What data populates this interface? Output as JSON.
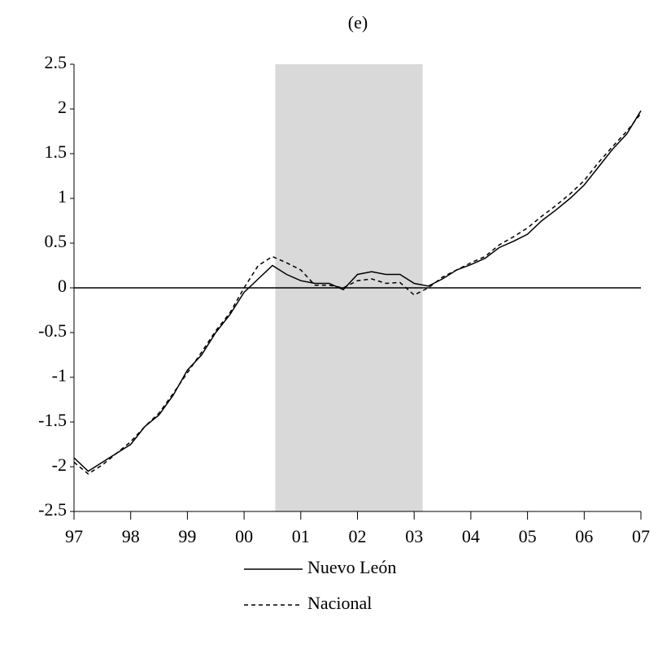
{
  "chart_data": {
    "type": "line",
    "title": "(e)",
    "x": [
      1997,
      1997.25,
      1997.5,
      1997.75,
      1998,
      1998.25,
      1998.5,
      1998.75,
      1999,
      1999.25,
      1999.5,
      1999.75,
      2000,
      2000.25,
      2000.5,
      2000.75,
      2001,
      2001.25,
      2001.5,
      2001.75,
      2002,
      2002.25,
      2002.5,
      2002.75,
      2003,
      2003.25,
      2003.5,
      2003.75,
      2004,
      2004.25,
      2004.5,
      2004.75,
      2005,
      2005.25,
      2005.5,
      2005.75,
      2006,
      2006.25,
      2006.5,
      2006.75,
      2007
    ],
    "series": [
      {
        "name": "Nuevo León",
        "color": "#000000",
        "dash": "none",
        "values": [
          -1.9,
          -2.05,
          -1.95,
          -1.85,
          -1.75,
          -1.55,
          -1.42,
          -1.2,
          -0.92,
          -0.75,
          -0.5,
          -0.3,
          -0.05,
          0.1,
          0.25,
          0.15,
          0.08,
          0.05,
          0.05,
          -0.02,
          0.15,
          0.18,
          0.15,
          0.15,
          0.05,
          0.02,
          0.1,
          0.2,
          0.26,
          0.33,
          0.45,
          0.52,
          0.6,
          0.75,
          0.87,
          1.0,
          1.15,
          1.35,
          1.55,
          1.72,
          1.98
        ]
      },
      {
        "name": "Nacional",
        "color": "#000000",
        "dash": "5,4",
        "values": [
          -1.95,
          -2.08,
          -1.98,
          -1.85,
          -1.72,
          -1.55,
          -1.4,
          -1.18,
          -0.95,
          -0.72,
          -0.48,
          -0.28,
          0.0,
          0.25,
          0.35,
          0.28,
          0.2,
          0.03,
          0.03,
          0.0,
          0.08,
          0.1,
          0.05,
          0.06,
          -0.08,
          0.0,
          0.12,
          0.2,
          0.28,
          0.35,
          0.48,
          0.57,
          0.67,
          0.8,
          0.92,
          1.05,
          1.2,
          1.4,
          1.58,
          1.75,
          1.95
        ]
      }
    ],
    "xlim": [
      1997,
      2007
    ],
    "xticks": [
      {
        "value": 1997,
        "label": "97"
      },
      {
        "value": 1998,
        "label": "98"
      },
      {
        "value": 1999,
        "label": "99"
      },
      {
        "value": 2000,
        "label": "00"
      },
      {
        "value": 2001,
        "label": "01"
      },
      {
        "value": 2002,
        "label": "02"
      },
      {
        "value": 2003,
        "label": "03"
      },
      {
        "value": 2004,
        "label": "04"
      },
      {
        "value": 2005,
        "label": "05"
      },
      {
        "value": 2006,
        "label": "06"
      },
      {
        "value": 2007,
        "label": "07"
      }
    ],
    "ylim": [
      -2.5,
      2.5
    ],
    "yticks": [
      -2.5,
      -2,
      -1.5,
      -1,
      -0.5,
      0,
      0.5,
      1,
      1.5,
      2,
      2.5
    ],
    "shade": {
      "xlim": [
        2000.55,
        2003.15
      ],
      "color": "#d9d9d9"
    },
    "zero_line": true,
    "grid": false,
    "legend": "bottom"
  }
}
